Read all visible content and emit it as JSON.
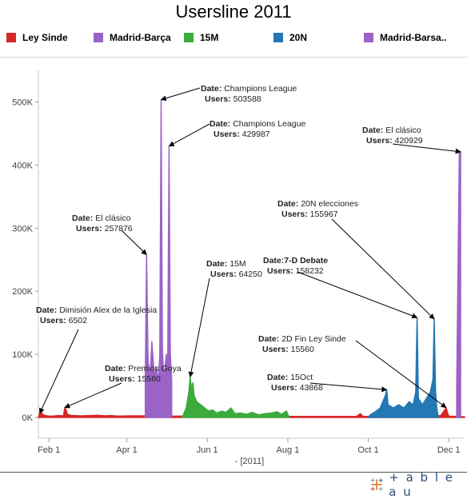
{
  "chart_data": {
    "type": "area",
    "title": "Usersline 2011",
    "xlabel": "- [2011]",
    "ylabel": "",
    "x_range": [
      "2011-01-24",
      "2011-12-13"
    ],
    "ylim": [
      0,
      550000
    ],
    "y_ticks": [
      0,
      100000,
      200000,
      300000,
      400000,
      500000
    ],
    "y_tick_labels": [
      "0K",
      "100K",
      "200K",
      "300K",
      "400K",
      "500K"
    ],
    "x_ticks": [
      "2011-02-01",
      "2011-04-01",
      "2011-06-01",
      "2011-08-01",
      "2011-10-01",
      "2011-12-01"
    ],
    "x_tick_labels": [
      "Feb 1",
      "Apr 1",
      "Jun 1",
      "Aug 1",
      "Oct 1",
      "Dec 1"
    ],
    "grid": false,
    "legend_position": "top",
    "series": [
      {
        "name": "Ley Sinde",
        "color": "#d62728",
        "points": [
          [
            "2011-01-24",
            0
          ],
          [
            "2011-01-25",
            6502
          ],
          [
            "2011-01-26",
            9000
          ],
          [
            "2011-01-27",
            5000
          ],
          [
            "2011-01-29",
            3000
          ],
          [
            "2011-02-01",
            2000
          ],
          [
            "2011-02-04",
            2000
          ],
          [
            "2011-02-08",
            3000
          ],
          [
            "2011-02-12",
            2500
          ],
          [
            "2011-02-13",
            15560
          ],
          [
            "2011-02-14",
            12000
          ],
          [
            "2011-02-15",
            5000
          ],
          [
            "2011-02-18",
            3000
          ],
          [
            "2011-02-25",
            2500
          ],
          [
            "2011-03-05",
            3000
          ],
          [
            "2011-03-10",
            3500
          ],
          [
            "2011-03-15",
            2500
          ],
          [
            "2011-03-20",
            3000
          ],
          [
            "2011-03-25",
            2000
          ],
          [
            "2011-04-05",
            2500
          ],
          [
            "2011-04-15",
            2500
          ],
          [
            "2011-05-01",
            2000
          ],
          [
            "2011-06-01",
            2000
          ],
          [
            "2011-07-01",
            2000
          ],
          [
            "2011-08-01",
            1500
          ],
          [
            "2011-09-01",
            1500
          ],
          [
            "2011-09-22",
            1500
          ],
          [
            "2011-09-25",
            6000
          ],
          [
            "2011-09-27",
            1500
          ],
          [
            "2011-10-10",
            1500
          ],
          [
            "2011-11-15",
            1500
          ],
          [
            "2011-11-25",
            3000
          ],
          [
            "2011-11-28",
            12000
          ],
          [
            "2011-11-29",
            15560
          ],
          [
            "2011-11-30",
            8000
          ],
          [
            "2011-12-01",
            2000
          ],
          [
            "2011-12-13",
            1000
          ]
        ]
      },
      {
        "name": "Madrid-Barça",
        "color": "#9b63c7",
        "points": [
          [
            "2011-04-15",
            0
          ],
          [
            "2011-04-15",
            60000
          ],
          [
            "2011-04-16",
            257876
          ],
          [
            "2011-04-17",
            100000
          ],
          [
            "2011-04-18",
            60000
          ],
          [
            "2011-04-19",
            80000
          ],
          [
            "2011-04-20",
            120000
          ],
          [
            "2011-04-21",
            90000
          ],
          [
            "2011-04-22",
            60000
          ],
          [
            "2011-04-23",
            80000
          ],
          [
            "2011-04-24",
            70000
          ],
          [
            "2011-04-25",
            60000
          ],
          [
            "2011-04-26",
            100000
          ],
          [
            "2011-04-27",
            503588
          ],
          [
            "2011-04-28",
            110000
          ],
          [
            "2011-04-29",
            60000
          ],
          [
            "2011-04-30",
            80000
          ],
          [
            "2011-05-01",
            100000
          ],
          [
            "2011-05-02",
            80000
          ],
          [
            "2011-05-03",
            429987
          ],
          [
            "2011-05-04",
            100000
          ],
          [
            "2011-05-05",
            60000
          ],
          [
            "2011-05-05",
            0
          ]
        ]
      },
      {
        "name": "15M",
        "color": "#3caa3c",
        "points": [
          [
            "2011-05-13",
            0
          ],
          [
            "2011-05-14",
            5000
          ],
          [
            "2011-05-16",
            15000
          ],
          [
            "2011-05-18",
            40000
          ],
          [
            "2011-05-19",
            64250
          ],
          [
            "2011-05-20",
            45000
          ],
          [
            "2011-05-21",
            55000
          ],
          [
            "2011-05-22",
            35000
          ],
          [
            "2011-05-24",
            25000
          ],
          [
            "2011-05-27",
            20000
          ],
          [
            "2011-05-30",
            15000
          ],
          [
            "2011-06-02",
            10000
          ],
          [
            "2011-06-05",
            12000
          ],
          [
            "2011-06-08",
            7000
          ],
          [
            "2011-06-12",
            10000
          ],
          [
            "2011-06-15",
            8000
          ],
          [
            "2011-06-19",
            15000
          ],
          [
            "2011-06-22",
            6000
          ],
          [
            "2011-06-26",
            7000
          ],
          [
            "2011-07-01",
            5000
          ],
          [
            "2011-07-05",
            8000
          ],
          [
            "2011-07-10",
            4000
          ],
          [
            "2011-07-15",
            6000
          ],
          [
            "2011-07-20",
            7000
          ],
          [
            "2011-07-24",
            9000
          ],
          [
            "2011-07-27",
            5000
          ],
          [
            "2011-07-31",
            10000
          ],
          [
            "2011-08-01",
            5000
          ],
          [
            "2011-08-02",
            0
          ]
        ]
      },
      {
        "name": "20N",
        "color": "#2478b4",
        "points": [
          [
            "2011-10-01",
            0
          ],
          [
            "2011-10-03",
            5000
          ],
          [
            "2011-10-07",
            10000
          ],
          [
            "2011-10-10",
            15000
          ],
          [
            "2011-10-14",
            35000
          ],
          [
            "2011-10-15",
            43868
          ],
          [
            "2011-10-16",
            20000
          ],
          [
            "2011-10-20",
            15000
          ],
          [
            "2011-10-24",
            20000
          ],
          [
            "2011-10-28",
            15000
          ],
          [
            "2011-11-01",
            25000
          ],
          [
            "2011-11-04",
            20000
          ],
          [
            "2011-11-06",
            40000
          ],
          [
            "2011-11-07",
            158232
          ],
          [
            "2011-11-08",
            30000
          ],
          [
            "2011-11-11",
            20000
          ],
          [
            "2011-11-14",
            30000
          ],
          [
            "2011-11-17",
            40000
          ],
          [
            "2011-11-19",
            60000
          ],
          [
            "2011-11-20",
            155967
          ],
          [
            "2011-11-21",
            40000
          ],
          [
            "2011-11-22",
            15000
          ],
          [
            "2011-11-23",
            0
          ]
        ]
      },
      {
        "name": "Madrid-Barsa..",
        "color": "#9b63c7",
        "points": [
          [
            "2011-12-07",
            0
          ],
          [
            "2011-12-07",
            50000
          ],
          [
            "2011-12-09",
            420929
          ],
          [
            "2011-12-10",
            420929
          ],
          [
            "2011-12-10",
            50000
          ],
          [
            "2011-12-10",
            0
          ]
        ]
      }
    ],
    "annotations": [
      {
        "date": "Dimisión Alex de la Iglesia",
        "users": "6502",
        "point": [
          "2011-01-25",
          6502
        ]
      },
      {
        "date": "Premios Goya",
        "users": "15560",
        "point": [
          "2011-02-13",
          15560
        ]
      },
      {
        "date": "El clásico",
        "users": "257876",
        "point": [
          "2011-04-16",
          257876
        ]
      },
      {
        "date": "Champions League",
        "users": "503588",
        "point": [
          "2011-04-27",
          503588
        ]
      },
      {
        "date": "Champions League",
        "users": "429987",
        "point": [
          "2011-05-03",
          429987
        ]
      },
      {
        "date": "15M",
        "users": "64250",
        "point": [
          "2011-05-19",
          64250
        ]
      },
      {
        "date": "15Oct",
        "users": "43868",
        "point": [
          "2011-10-15",
          43868
        ]
      },
      {
        "date": "7-D Debate",
        "users": "158232",
        "point": [
          "2011-11-07",
          158232
        ]
      },
      {
        "date": "20N elecciones",
        "users": "155967",
        "point": [
          "2011-11-20",
          155967
        ]
      },
      {
        "date": "2D Fin Ley Sinde",
        "users": "15560",
        "point": [
          "2011-11-29",
          15560
        ]
      },
      {
        "date": "El clásico",
        "users": "420929",
        "point": [
          "2011-12-10",
          420929
        ]
      }
    ],
    "annotation_labels": {
      "date": "Date:",
      "date_compact": "Date:",
      "users": "Users:"
    }
  },
  "branding": {
    "logo_text": "+ a b l e a u",
    "logo_icon": "tableau-cross-icon"
  }
}
